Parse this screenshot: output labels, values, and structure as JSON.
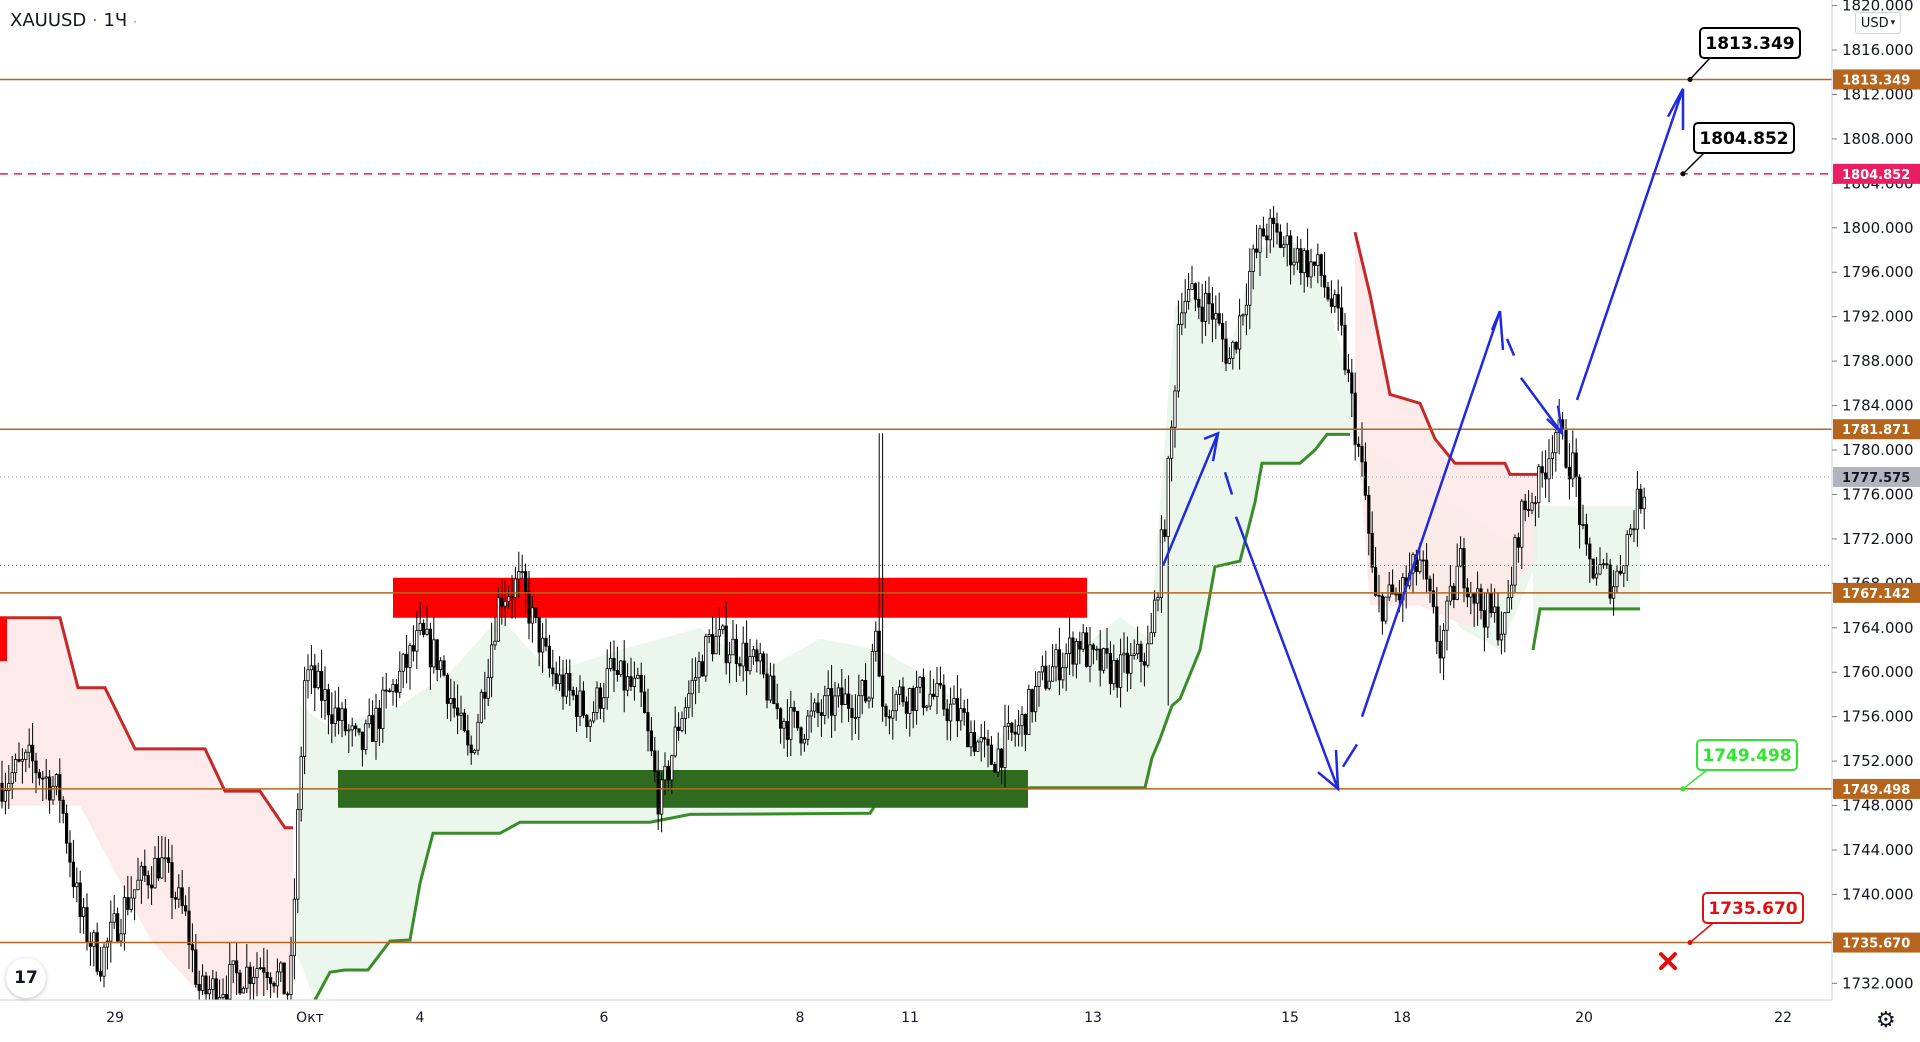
{
  "header": {
    "symbol": "XAUUSD",
    "timeframe": "1Ч",
    "currency": "USD"
  },
  "colors": {
    "level_line": "#b8651f",
    "bull_candle": "#000000",
    "magenta_line": "#e91e63",
    "target_line": "#b5651d",
    "blue_arrow": "#1f2ae0",
    "red_zone": "#ff0000",
    "green_zone": "#2e6b1f",
    "trail_green": "#3a8c2a",
    "trail_red": "#c62828",
    "fill_green": "#e8f5e9",
    "fill_red": "#fde7e7",
    "current_price_bg": "#b2b5be"
  },
  "chart_data": {
    "type": "candlestick",
    "ylim": [
      1730.5,
      1820.5
    ],
    "y_ticks": [
      "1732.000",
      "1736.000",
      "1740.000",
      "1744.000",
      "1748.000",
      "1752.000",
      "1756.000",
      "1760.000",
      "1764.000",
      "1768.000",
      "1772.000",
      "1776.000",
      "1780.000",
      "1784.000",
      "1788.000",
      "1792.000",
      "1796.000",
      "1800.000",
      "1804.000",
      "1808.000",
      "1812.000",
      "1816.000",
      "1820.000"
    ],
    "x_ticks": [
      "29",
      "Окт",
      "4",
      "6",
      "8",
      "11",
      "13",
      "15",
      "18",
      "20",
      "22"
    ],
    "levels": [
      {
        "label": "1813.349",
        "value": 1813.349,
        "style": "solid",
        "color": "#b5651d"
      },
      {
        "label": "1804.852",
        "value": 1804.852,
        "style": "dashed",
        "color": "#e91e63"
      },
      {
        "label": "1781.871",
        "value": 1781.871,
        "style": "solid",
        "color": "#b5651d"
      },
      {
        "label": "1777.575",
        "value": 1777.575,
        "style": "current",
        "color": "#b2b5be"
      },
      {
        "label": "1767.142",
        "value": 1767.142,
        "style": "solid",
        "color": "#b5651d"
      },
      {
        "label": "1749.498",
        "value": 1749.498,
        "style": "solid",
        "color": "#b5651d"
      },
      {
        "label": "1735.670",
        "value": 1735.67,
        "style": "solid",
        "color": "#b5651d"
      }
    ],
    "callouts": [
      {
        "label": "1813.349",
        "color": "#000000"
      },
      {
        "label": "1804.852",
        "color": "#000000"
      },
      {
        "label": "1749.498",
        "color": "#2ee62e"
      },
      {
        "label": "1735.670",
        "color": "#e01010"
      }
    ],
    "zones": [
      {
        "name": "resistance",
        "from": 1764.9,
        "to": 1768.5
      },
      {
        "name": "support",
        "from": 1747.8,
        "to": 1751.2
      }
    ]
  }
}
